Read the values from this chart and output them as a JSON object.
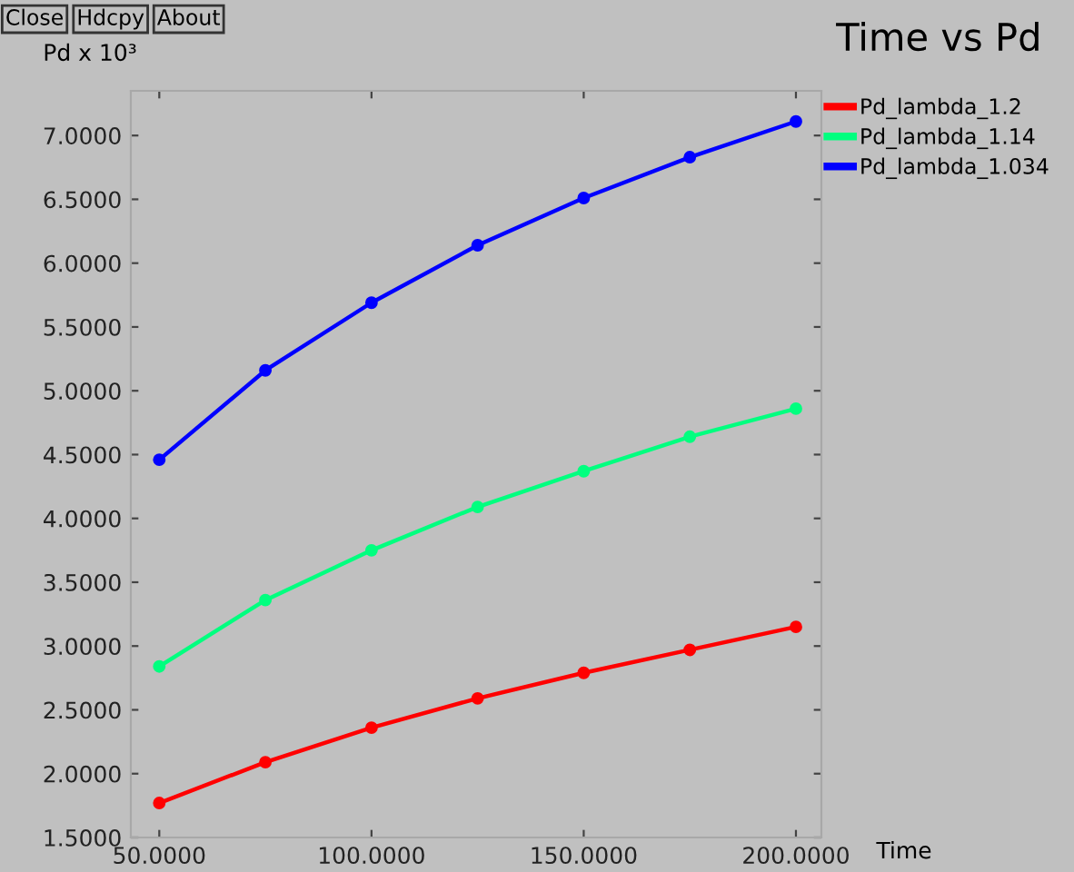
{
  "chart_data": {
    "type": "line",
    "title": "Time vs Pd",
    "xlabel": "Time",
    "ylabel": "Pd x 10³",
    "annotations": [
      "Close",
      "Hdcpy",
      "About"
    ],
    "x": [
      50,
      75,
      100,
      125,
      150,
      175,
      200
    ],
    "series": [
      {
        "name": "Pd_lambda_1.2",
        "color": "#ff0000",
        "values": [
          1.77,
          2.09,
          2.36,
          2.59,
          2.79,
          2.97,
          3.15
        ]
      },
      {
        "name": "Pd_lambda_1.14",
        "color": "#00ff7f",
        "values": [
          2.84,
          3.36,
          3.75,
          4.09,
          4.37,
          4.64,
          4.86
        ]
      },
      {
        "name": "Pd_lambda_1.034",
        "color": "#0000ff",
        "values": [
          4.46,
          5.16,
          5.69,
          6.14,
          6.51,
          6.83,
          7.11
        ]
      }
    ],
    "xlim": [
      43.3,
      206
    ],
    "ylim": [
      1.5,
      7.35
    ],
    "xticks": [
      {
        "value": 50,
        "label": "50.0000"
      },
      {
        "value": 100,
        "label": "100.0000"
      },
      {
        "value": 150,
        "label": "150.0000"
      },
      {
        "value": 200,
        "label": "200.0000"
      }
    ],
    "yticks": [
      {
        "value": 1.5,
        "label": "1.5000"
      },
      {
        "value": 2.0,
        "label": "2.0000"
      },
      {
        "value": 2.5,
        "label": "2.5000"
      },
      {
        "value": 3.0,
        "label": "3.0000"
      },
      {
        "value": 3.5,
        "label": "3.5000"
      },
      {
        "value": 4.0,
        "label": "4.0000"
      },
      {
        "value": 4.5,
        "label": "4.5000"
      },
      {
        "value": 5.0,
        "label": "5.0000"
      },
      {
        "value": 5.5,
        "label": "5.5000"
      },
      {
        "value": 6.0,
        "label": "6.0000"
      },
      {
        "value": 6.5,
        "label": "6.5000"
      },
      {
        "value": 7.0,
        "label": "7.0000"
      }
    ],
    "marker": "circle",
    "line_style": "solid",
    "grid": false,
    "legend": "top right"
  }
}
